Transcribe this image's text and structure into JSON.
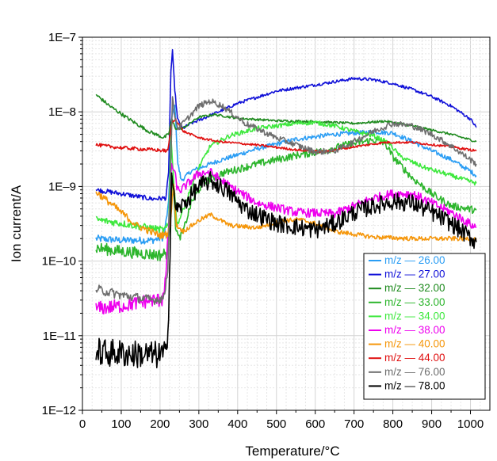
{
  "chart_data": {
    "type": "line",
    "xlabel": "Temperature/°C",
    "ylabel": "Ion current/A",
    "xlim": [
      0,
      1050
    ],
    "x_ticks": [
      0,
      100,
      200,
      300,
      400,
      500,
      600,
      700,
      800,
      900,
      1000
    ],
    "x_tick_labels": [
      "0",
      "100",
      "200",
      "300",
      "400",
      "500",
      "600",
      "700",
      "800",
      "900",
      "1000"
    ],
    "y_scale": "log",
    "ylim": [
      1e-12,
      1e-07
    ],
    "y_ticks": [
      1e-12,
      1e-11,
      1e-10,
      1e-09,
      1e-08,
      1e-07
    ],
    "y_tick_labels": [
      "1E–12",
      "1E–11",
      "1E–10",
      "1E–9",
      "1E–8",
      "1E–7"
    ],
    "grid": true,
    "legend_position": "lower-right",
    "series": [
      {
        "name": "26.00",
        "legend_prefix": "m/z —",
        "color": "#2a9df4",
        "noise": 0.03,
        "points": [
          [
            35,
            2e-10
          ],
          [
            100,
            1.9e-10
          ],
          [
            180,
            1.9e-10
          ],
          [
            210,
            2.1e-10
          ],
          [
            222,
            6e-10
          ],
          [
            230,
            8e-09
          ],
          [
            238,
            1.3e-08
          ],
          [
            246,
            2e-09
          ],
          [
            255,
            1.2e-09
          ],
          [
            280,
            1.6e-09
          ],
          [
            350,
            2.2e-09
          ],
          [
            450,
            3.2e-09
          ],
          [
            550,
            4.3e-09
          ],
          [
            650,
            5e-09
          ],
          [
            750,
            5.4e-09
          ],
          [
            800,
            5.2e-09
          ],
          [
            850,
            4e-09
          ],
          [
            900,
            3e-09
          ],
          [
            950,
            2.3e-09
          ],
          [
            1000,
            1.6e-09
          ],
          [
            1015,
            1.4e-09
          ]
        ]
      },
      {
        "name": "27.00",
        "legend_prefix": "m/z —",
        "color": "#1010d8",
        "noise": 0.02,
        "points": [
          [
            35,
            9e-10
          ],
          [
            100,
            8e-10
          ],
          [
            180,
            6.8e-10
          ],
          [
            215,
            7e-10
          ],
          [
            222,
            1.5e-09
          ],
          [
            228,
            3.5e-08
          ],
          [
            232,
            6.5e-08
          ],
          [
            238,
            2e-08
          ],
          [
            245,
            8e-09
          ],
          [
            258,
            6e-09
          ],
          [
            280,
            7e-09
          ],
          [
            320,
            8.5e-09
          ],
          [
            400,
            1.3e-08
          ],
          [
            500,
            1.9e-08
          ],
          [
            600,
            2.3e-08
          ],
          [
            700,
            2.8e-08
          ],
          [
            750,
            2.7e-08
          ],
          [
            800,
            2.4e-08
          ],
          [
            850,
            2e-08
          ],
          [
            900,
            1.6e-08
          ],
          [
            950,
            1.2e-08
          ],
          [
            1000,
            8e-09
          ],
          [
            1015,
            6.2e-09
          ]
        ]
      },
      {
        "name": "32.00",
        "legend_prefix": "m/z —",
        "color": "#1e8a1e",
        "noise": 0.015,
        "points": [
          [
            35,
            1.7e-08
          ],
          [
            70,
            1.2e-08
          ],
          [
            120,
            8e-09
          ],
          [
            170,
            5.5e-09
          ],
          [
            210,
            4.5e-09
          ],
          [
            222,
            5e-09
          ],
          [
            230,
            8e-09
          ],
          [
            240,
            6e-09
          ],
          [
            258,
            6e-09
          ],
          [
            300,
            8.5e-09
          ],
          [
            340,
            9.2e-09
          ],
          [
            400,
            8.2e-09
          ],
          [
            500,
            7.6e-09
          ],
          [
            600,
            7.4e-09
          ],
          [
            700,
            7e-09
          ],
          [
            780,
            7.5e-09
          ],
          [
            850,
            6.5e-09
          ],
          [
            950,
            5e-09
          ],
          [
            1015,
            4e-09
          ]
        ]
      },
      {
        "name": "33.00",
        "legend_prefix": "m/z —",
        "color": "#2cb52c",
        "noise": 0.05,
        "points": [
          [
            35,
            1.5e-10
          ],
          [
            100,
            1.35e-10
          ],
          [
            200,
            1.2e-10
          ],
          [
            220,
            1.3e-10
          ],
          [
            226,
            4e-10
          ],
          [
            232,
            1.5e-09
          ],
          [
            240,
            3e-10
          ],
          [
            248,
            2e-10
          ],
          [
            260,
            2.5e-10
          ],
          [
            280,
            6e-10
          ],
          [
            310,
            1.1e-09
          ],
          [
            360,
            1.5e-09
          ],
          [
            450,
            2e-09
          ],
          [
            550,
            2.6e-09
          ],
          [
            620,
            3e-09
          ],
          [
            680,
            3.6e-09
          ],
          [
            750,
            4.2e-09
          ],
          [
            780,
            3.8e-09
          ],
          [
            800,
            2.5e-09
          ],
          [
            850,
            1.3e-09
          ],
          [
            900,
            8e-10
          ],
          [
            950,
            5.5e-10
          ],
          [
            1015,
            4.8e-10
          ]
        ]
      },
      {
        "name": "34.00",
        "legend_prefix": "m/z —",
        "color": "#3ee83e",
        "noise": 0.03,
        "points": [
          [
            35,
            3.6e-10
          ],
          [
            100,
            3.2e-10
          ],
          [
            210,
            2.6e-10
          ],
          [
            222,
            3e-10
          ],
          [
            228,
            5e-09
          ],
          [
            236,
            1e-09
          ],
          [
            244,
            3e-10
          ],
          [
            260,
            5e-10
          ],
          [
            300,
            1.8e-09
          ],
          [
            330,
            3.5e-09
          ],
          [
            380,
            4.8e-09
          ],
          [
            450,
            6e-09
          ],
          [
            550,
            7e-09
          ],
          [
            600,
            7.2e-09
          ],
          [
            650,
            6.5e-09
          ],
          [
            700,
            5.5e-09
          ],
          [
            750,
            4.8e-09
          ],
          [
            790,
            3.8e-09
          ],
          [
            820,
            2.5e-09
          ],
          [
            880,
            1.8e-09
          ],
          [
            950,
            1.4e-09
          ],
          [
            1015,
            1.1e-09
          ]
        ]
      },
      {
        "name": "38.00",
        "legend_prefix": "m/z —",
        "color": "#ee00ee",
        "noise": 0.06,
        "points": [
          [
            35,
            2.3e-11
          ],
          [
            100,
            2.5e-11
          ],
          [
            180,
            3e-11
          ],
          [
            205,
            3e-11
          ],
          [
            215,
            6e-11
          ],
          [
            222,
            3e-10
          ],
          [
            230,
            2e-09
          ],
          [
            238,
            1.5e-09
          ],
          [
            245,
            9e-10
          ],
          [
            255,
            9e-10
          ],
          [
            300,
            1.5e-09
          ],
          [
            330,
            1.55e-09
          ],
          [
            380,
            1e-09
          ],
          [
            450,
            6e-10
          ],
          [
            550,
            4.5e-10
          ],
          [
            650,
            4.3e-10
          ],
          [
            750,
            7e-10
          ],
          [
            800,
            8e-10
          ],
          [
            850,
            8e-10
          ],
          [
            900,
            6e-10
          ],
          [
            950,
            4.5e-10
          ],
          [
            1015,
            2.8e-10
          ]
        ]
      },
      {
        "name": "40.00",
        "legend_prefix": "m/z —",
        "color": "#f5960a",
        "noise": 0.03,
        "points": [
          [
            35,
            8.5e-10
          ],
          [
            80,
            5.5e-10
          ],
          [
            140,
            3e-10
          ],
          [
            200,
            2.2e-10
          ],
          [
            220,
            2.3e-10
          ],
          [
            228,
            4e-10
          ],
          [
            235,
            1.1e-09
          ],
          [
            242,
            3e-10
          ],
          [
            260,
            2.5e-10
          ],
          [
            300,
            3.5e-10
          ],
          [
            330,
            4.2e-10
          ],
          [
            380,
            3e-10
          ],
          [
            450,
            2.8e-10
          ],
          [
            520,
            3.5e-10
          ],
          [
            560,
            3.6e-10
          ],
          [
            600,
            3.2e-10
          ],
          [
            650,
            2.5e-10
          ],
          [
            750,
            2.1e-10
          ],
          [
            850,
            2e-10
          ],
          [
            950,
            2e-10
          ],
          [
            1015,
            2e-10
          ]
        ]
      },
      {
        "name": "44.00",
        "legend_prefix": "m/z —",
        "color": "#e01010",
        "noise": 0.015,
        "points": [
          [
            35,
            3.6e-09
          ],
          [
            100,
            3.3e-09
          ],
          [
            180,
            3.1e-09
          ],
          [
            220,
            3e-09
          ],
          [
            230,
            7e-09
          ],
          [
            240,
            8e-09
          ],
          [
            260,
            5.5e-09
          ],
          [
            300,
            4.5e-09
          ],
          [
            350,
            4e-09
          ],
          [
            450,
            3.6e-09
          ],
          [
            550,
            3.1e-09
          ],
          [
            620,
            2.9e-09
          ],
          [
            700,
            3.4e-09
          ],
          [
            780,
            3.9e-09
          ],
          [
            850,
            3.9e-09
          ],
          [
            950,
            3.4e-09
          ],
          [
            1015,
            3e-09
          ]
        ]
      },
      {
        "name": "76.00",
        "legend_prefix": "m/z —",
        "color": "#6e6e6e",
        "noise": 0.04,
        "points": [
          [
            35,
            4.2e-11
          ],
          [
            100,
            3.5e-11
          ],
          [
            180,
            3e-11
          ],
          [
            210,
            3.2e-11
          ],
          [
            220,
            8e-11
          ],
          [
            226,
            1e-09
          ],
          [
            232,
            1.5e-08
          ],
          [
            238,
            9e-09
          ],
          [
            246,
            6e-09
          ],
          [
            270,
            8e-09
          ],
          [
            300,
            1.2e-08
          ],
          [
            330,
            1.4e-08
          ],
          [
            360,
            1.2e-08
          ],
          [
            420,
            7e-09
          ],
          [
            500,
            4.5e-09
          ],
          [
            600,
            2.9e-09
          ],
          [
            650,
            3e-09
          ],
          [
            700,
            4e-09
          ],
          [
            750,
            5.5e-09
          ],
          [
            800,
            7e-09
          ],
          [
            850,
            6.5e-09
          ],
          [
            900,
            5e-09
          ],
          [
            950,
            3.5e-09
          ],
          [
            1015,
            2e-09
          ]
        ]
      },
      {
        "name": "78.00",
        "legend_prefix": "m/z —",
        "color": "#000000",
        "noise": 0.12,
        "points": [
          [
            35,
            6e-12
          ],
          [
            100,
            5.8e-12
          ],
          [
            180,
            5.5e-12
          ],
          [
            215,
            5.5e-12
          ],
          [
            222,
            2e-11
          ],
          [
            226,
            1.5e-10
          ],
          [
            230,
            1.5e-09
          ],
          [
            236,
            7e-10
          ],
          [
            245,
            4.8e-10
          ],
          [
            270,
            6.5e-10
          ],
          [
            300,
            1e-09
          ],
          [
            330,
            1.2e-09
          ],
          [
            370,
            9e-10
          ],
          [
            420,
            5e-10
          ],
          [
            500,
            3.2e-10
          ],
          [
            600,
            2.6e-10
          ],
          [
            650,
            3.2e-10
          ],
          [
            700,
            4.5e-10
          ],
          [
            750,
            5.5e-10
          ],
          [
            800,
            6.3e-10
          ],
          [
            850,
            6e-10
          ],
          [
            900,
            4.5e-10
          ],
          [
            950,
            3.2e-10
          ],
          [
            1015,
            1.8e-10
          ]
        ]
      }
    ]
  }
}
